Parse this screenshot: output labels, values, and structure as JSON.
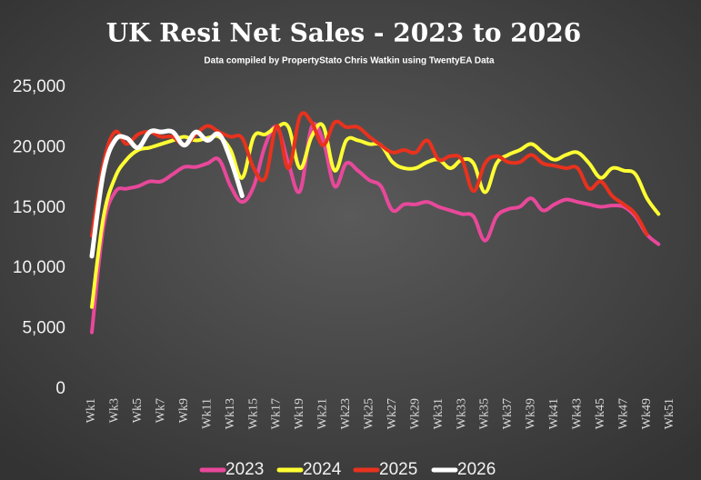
{
  "chart_data": {
    "type": "line",
    "title": "UK  Resi Net Sales - 2023 to 2026",
    "subtitle": "Data compiled by PropertyStato Chris Watkin using TwentyEA Data",
    "categories": [
      "Wk1",
      null,
      "Wk3",
      null,
      "Wk5",
      null,
      "Wk7",
      null,
      "Wk9",
      null,
      "Wk11",
      null,
      "Wk13",
      null,
      "Wk15",
      null,
      "Wk17",
      null,
      "Wk19",
      null,
      "Wk21",
      null,
      "Wk23",
      null,
      "Wk25",
      null,
      "Wk27",
      null,
      "Wk29",
      null,
      "Wk31",
      null,
      "Wk33",
      null,
      "Wk35",
      null,
      "Wk37",
      null,
      "Wk39",
      null,
      "Wk41",
      null,
      "Wk43",
      null,
      "Wk45",
      null,
      "Wk47",
      null,
      "Wk49",
      null,
      "Wk51",
      null
    ],
    "ylim": [
      0,
      25000
    ],
    "yticks": [
      0,
      {
        "value": 5000,
        "label": "5,000"
      },
      {
        "value": 10000,
        "label": "10,000"
      },
      {
        "value": 15000,
        "label": "15,000"
      },
      {
        "value": 20000,
        "label": "20,000"
      },
      {
        "value": 25000,
        "label": "25,000"
      }
    ],
    "grid": false,
    "legend": "bottom",
    "series": [
      {
        "name": "2023",
        "color": "#e8489a",
        "values": [
          4700,
          13400,
          16300,
          16600,
          16800,
          17200,
          17200,
          17800,
          18400,
          18400,
          18700,
          19000,
          16800,
          15500,
          16800,
          20200,
          21700,
          18700,
          16400,
          21700,
          20600,
          16800,
          18700,
          18100,
          17300,
          16800,
          14800,
          15300,
          15300,
          15500,
          15100,
          14800,
          14500,
          14300,
          12300,
          14300,
          14900,
          15100,
          15800,
          14800,
          15300,
          15700,
          15500,
          15300,
          15100,
          15200,
          15100,
          14300,
          12800,
          12000,
          null,
          null
        ]
      },
      {
        "name": "2024",
        "color": "#ffff33",
        "values": [
          6800,
          14200,
          17500,
          19000,
          19800,
          20000,
          20300,
          20600,
          20900,
          20600,
          20800,
          20900,
          19800,
          17500,
          20900,
          21100,
          21700,
          21700,
          18300,
          20900,
          21800,
          18100,
          20600,
          20600,
          20300,
          20200,
          18800,
          18300,
          18300,
          18800,
          19000,
          18300,
          19000,
          18700,
          16300,
          18700,
          19400,
          19800,
          20300,
          19600,
          19000,
          19400,
          19600,
          18700,
          17500,
          18300,
          18100,
          17800,
          15800,
          14500,
          null,
          null
        ]
      },
      {
        "name": "2025",
        "color": "#e8321e",
        "values": [
          12700,
          18700,
          21300,
          20300,
          21100,
          21300,
          20900,
          20900,
          20200,
          21100,
          21800,
          21300,
          20900,
          20800,
          18300,
          17500,
          21800,
          18300,
          22600,
          22100,
          20200,
          22100,
          21700,
          21700,
          20900,
          20200,
          19600,
          19800,
          19600,
          20600,
          19000,
          19300,
          19000,
          16400,
          18700,
          19300,
          18800,
          18800,
          19400,
          18700,
          18500,
          18300,
          18300,
          16600,
          17200,
          16000,
          15300,
          14500,
          12800,
          null,
          null,
          null
        ]
      },
      {
        "name": "2026",
        "color": "#ffffff",
        "values": [
          11000,
          17900,
          20600,
          20800,
          20000,
          21300,
          21300,
          21300,
          20200,
          21300,
          20600,
          21100,
          19000,
          16000,
          null,
          null,
          null,
          null,
          null,
          null,
          null,
          null,
          null,
          null,
          null,
          null,
          null,
          null,
          null,
          null,
          null,
          null,
          null,
          null,
          null,
          null,
          null,
          null,
          null,
          null,
          null,
          null,
          null,
          null,
          null,
          null,
          null,
          null,
          null,
          null,
          null,
          null
        ]
      }
    ]
  }
}
